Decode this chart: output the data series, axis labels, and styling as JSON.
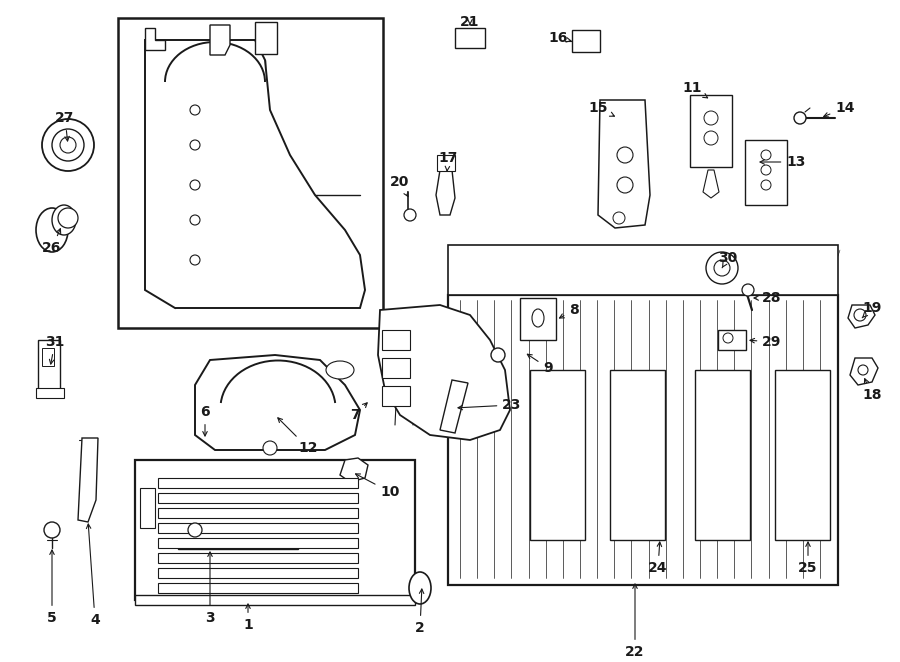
{
  "bg_color": "#ffffff",
  "line_color": "#1a1a1a",
  "figsize": [
    9.0,
    6.62
  ],
  "dpi": 100,
  "lw": 1.0
}
